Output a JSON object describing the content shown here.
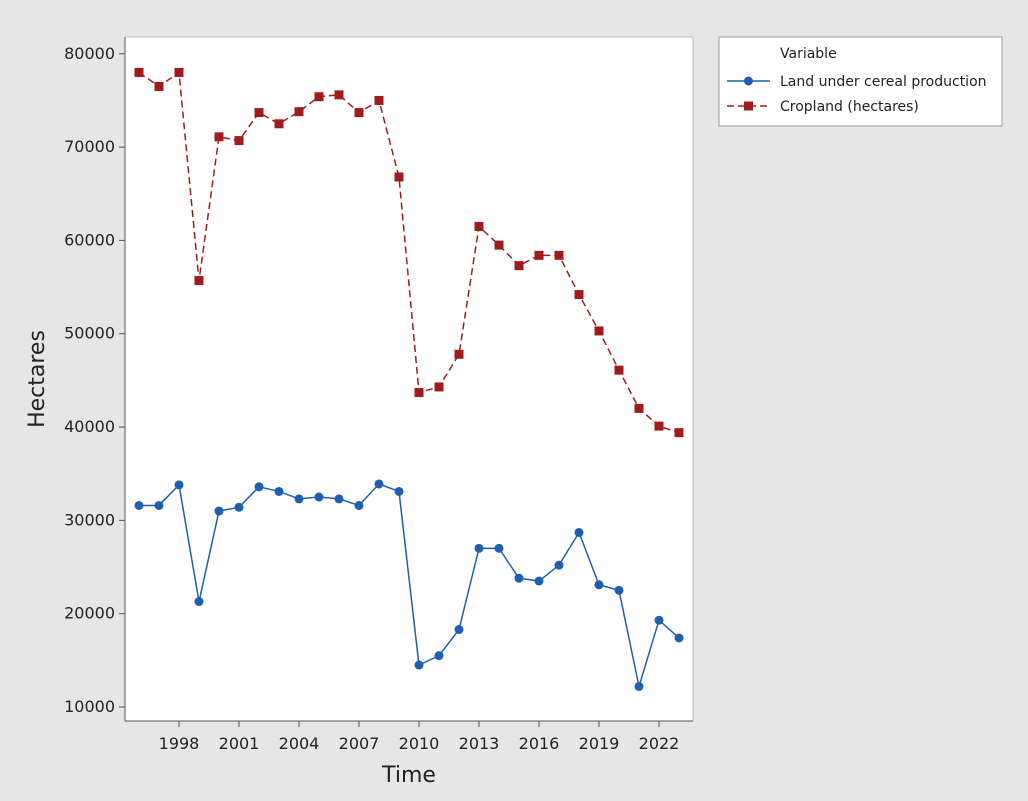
{
  "chart_data": {
    "type": "line",
    "title": "",
    "xlabel": "Time",
    "ylabel": "Hectares",
    "x": [
      1996,
      1997,
      1998,
      1999,
      2000,
      2001,
      2002,
      2003,
      2004,
      2005,
      2006,
      2007,
      2008,
      2009,
      2010,
      2011,
      2012,
      2013,
      2014,
      2015,
      2016,
      2017,
      2018,
      2019,
      2020,
      2021,
      2022,
      2023
    ],
    "x_ticks": [
      1998,
      2001,
      2004,
      2007,
      2010,
      2013,
      2016,
      2019,
      2022
    ],
    "y_ticks": [
      10000,
      20000,
      30000,
      40000,
      50000,
      60000,
      70000,
      80000
    ],
    "xlim": [
      1995.3,
      2023.7
    ],
    "ylim": [
      8500,
      81800
    ],
    "grid": false,
    "legend": {
      "title": "Variable",
      "placement": "outside-top-right"
    },
    "series": [
      {
        "name": "Land under cereal production",
        "color": "#1f5fae",
        "marker": "circle",
        "line": "solid",
        "values": [
          31600,
          31600,
          33800,
          21300,
          31000,
          31400,
          33600,
          33100,
          32300,
          32500,
          32300,
          31600,
          33900,
          33100,
          14500,
          15500,
          18300,
          27000,
          27000,
          23800,
          23500,
          25200,
          28700,
          23100,
          22500,
          12200,
          19300,
          17400
        ]
      },
      {
        "name": "Cropland (hectares)",
        "color": "#a01c1c",
        "marker": "square",
        "line": "dashed",
        "values": [
          78000,
          76500,
          78000,
          55700,
          71100,
          70700,
          73700,
          72500,
          73800,
          75400,
          75600,
          73700,
          75000,
          66800,
          43700,
          44300,
          47800,
          61500,
          59500,
          57300,
          58400,
          58400,
          54200,
          50300,
          46100,
          42000,
          40100,
          39400
        ]
      }
    ]
  }
}
